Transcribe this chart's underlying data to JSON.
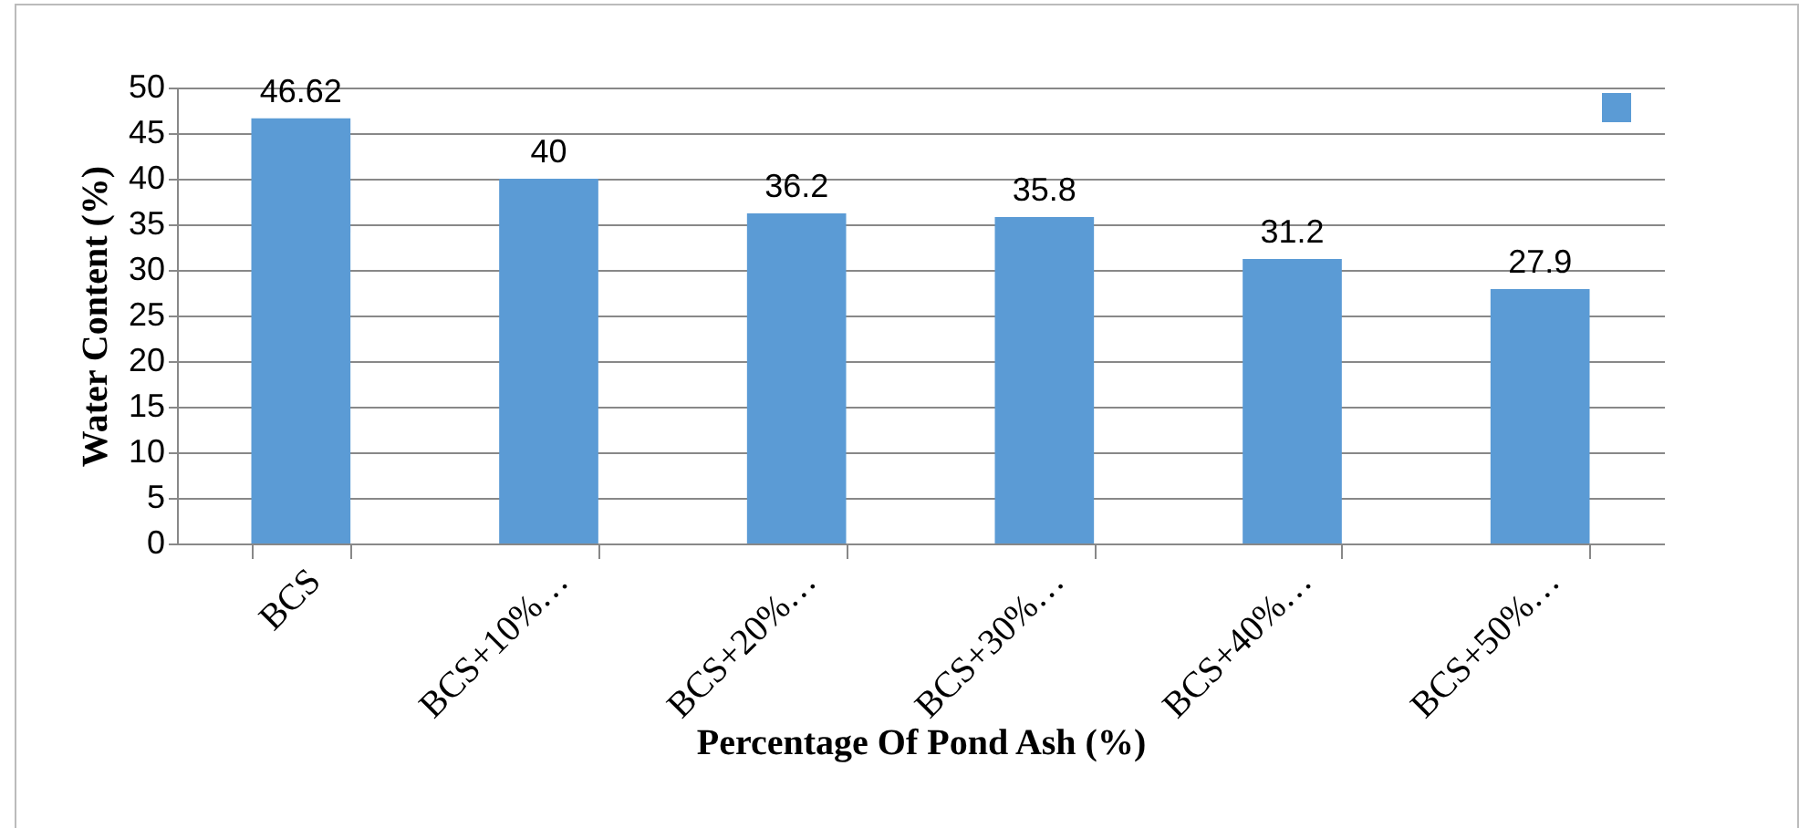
{
  "chart_data": {
    "type": "bar",
    "xlabel": "Percentage Of Pond Ash (%)",
    "ylabel": "Water Content (%)",
    "categories": [
      "BCS",
      "BCS+10%…",
      "BCS+20%…",
      "BCS+30%…",
      "BCS+40%…",
      "BCS+50%…"
    ],
    "series": [
      {
        "color": "#5b9bd5",
        "values": [
          46.62,
          40,
          36.2,
          35.8,
          31.2,
          27.9
        ]
      }
    ],
    "ylim": [
      0,
      50
    ],
    "yticks": [
      0,
      5,
      10,
      15,
      20,
      25,
      30,
      35,
      40,
      45,
      50
    ],
    "grid": "y",
    "data_labels": true
  }
}
